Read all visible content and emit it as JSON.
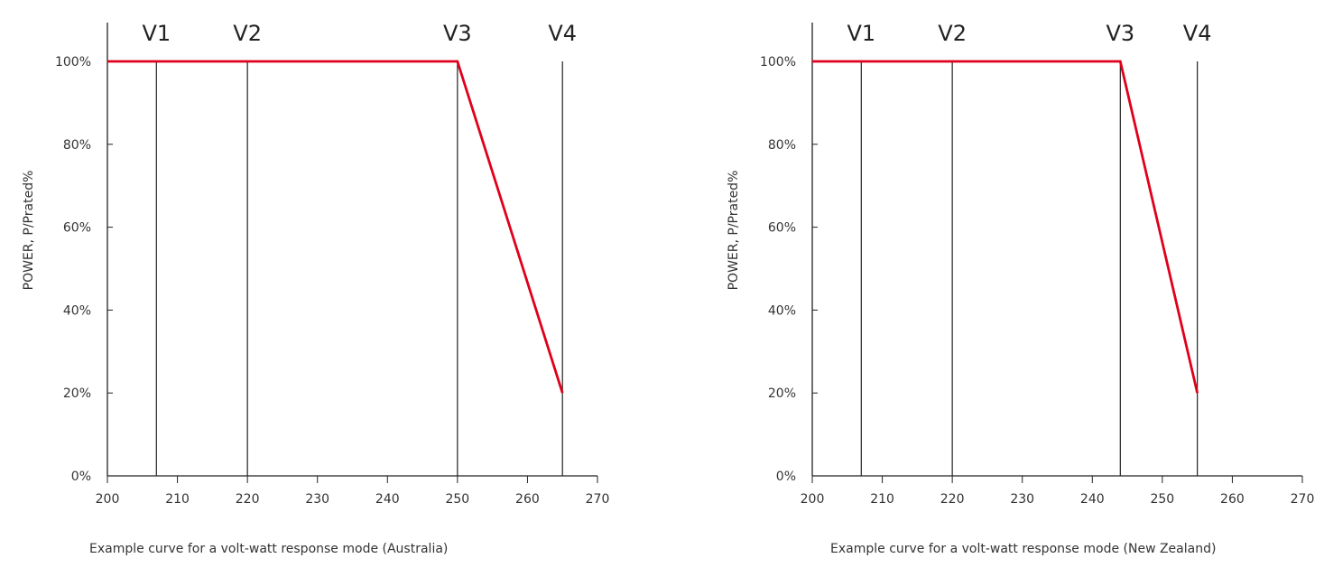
{
  "chart_data": [
    {
      "type": "line",
      "ylabel": "POWER, P/Prated%",
      "caption": "Example curve for a volt-watt response mode (Australia)",
      "xlim": [
        200,
        270
      ],
      "xticks": [
        "200",
        "210",
        "220",
        "230",
        "240",
        "250",
        "260",
        "270"
      ],
      "ylim": [
        0,
        110
      ],
      "yticks": [
        "0%",
        "20%",
        "40%",
        "60%",
        "80%",
        "100%"
      ],
      "grid": false,
      "line_color": "#e0001b",
      "markers": [
        {
          "label": "V1",
          "x": 207
        },
        {
          "label": "V2",
          "x": 220
        },
        {
          "label": "V3",
          "x": 250
        },
        {
          "label": "V4",
          "x": 265
        }
      ],
      "series": [
        {
          "x": [
            200,
            250,
            265
          ],
          "y": [
            100,
            100,
            20
          ]
        }
      ]
    },
    {
      "type": "line",
      "ylabel": "POWER, P/Prated%",
      "caption": "Example curve for a volt-watt response mode (New Zealand)",
      "xlim": [
        200,
        270
      ],
      "xticks": [
        "200",
        "210",
        "220",
        "230",
        "240",
        "250",
        "260",
        "270"
      ],
      "ylim": [
        0,
        110
      ],
      "yticks": [
        "0%",
        "20%",
        "40%",
        "60%",
        "80%",
        "100%"
      ],
      "grid": false,
      "line_color": "#e0001b",
      "markers": [
        {
          "label": "V1",
          "x": 207
        },
        {
          "label": "V2",
          "x": 220
        },
        {
          "label": "V3",
          "x": 244
        },
        {
          "label": "V4",
          "x": 255
        }
      ],
      "series": [
        {
          "x": [
            200,
            244,
            255
          ],
          "y": [
            100,
            100,
            20
          ]
        }
      ]
    }
  ]
}
